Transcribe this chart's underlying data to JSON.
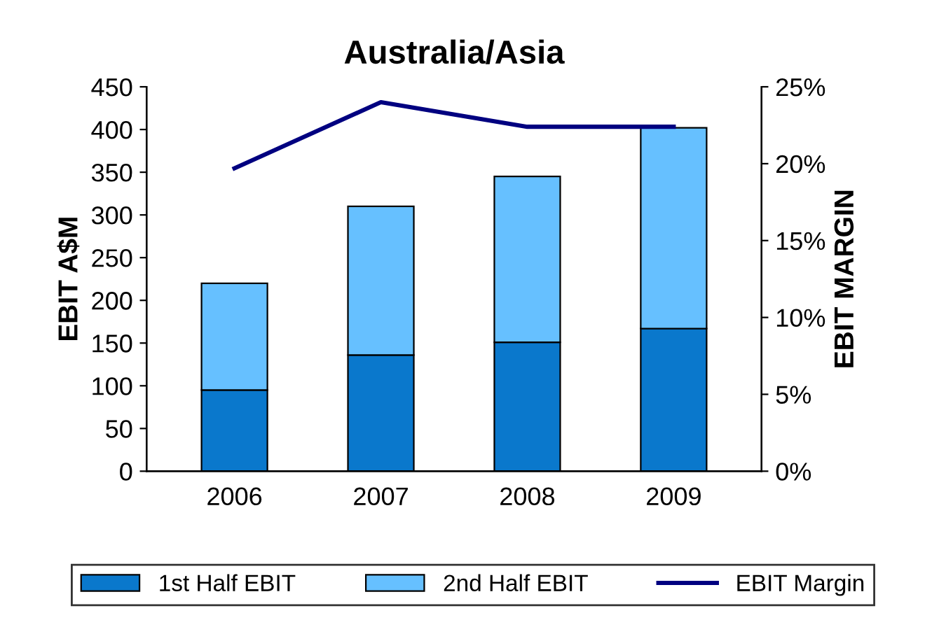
{
  "chart_data": {
    "type": "bar",
    "title": "Australia/Asia",
    "ylabel": "EBIT A$M",
    "y2label": "EBIT MARGIN",
    "categories": [
      "2006",
      "2007",
      "2008",
      "2009"
    ],
    "stacked": true,
    "series": [
      {
        "name": "1st Half EBIT",
        "color": "#0a78cc",
        "values": [
          95,
          136,
          151,
          167
        ]
      },
      {
        "name": "2nd Half EBIT",
        "color": "#66c0ff",
        "values": [
          125,
          174,
          194,
          235
        ]
      },
      {
        "name": "EBIT Margin",
        "type": "line",
        "axis": "y2",
        "color": "#000080",
        "values": [
          19.7,
          24.0,
          22.4,
          22.4
        ]
      }
    ],
    "ylim": [
      0,
      450
    ],
    "yticks": [
      0,
      50,
      100,
      150,
      200,
      250,
      300,
      350,
      400,
      450
    ],
    "y2lim": [
      0,
      25
    ],
    "y2ticks": [
      {
        "value": 0,
        "label": "0%"
      },
      {
        "value": 5,
        "label": "5%"
      },
      {
        "value": 10,
        "label": "10%"
      },
      {
        "value": 15,
        "label": "15%"
      },
      {
        "value": 20,
        "label": "20%"
      },
      {
        "value": 25,
        "label": "25%"
      }
    ],
    "grid": false,
    "legend": "bottom",
    "marker": "none",
    "line_style": "solid"
  }
}
